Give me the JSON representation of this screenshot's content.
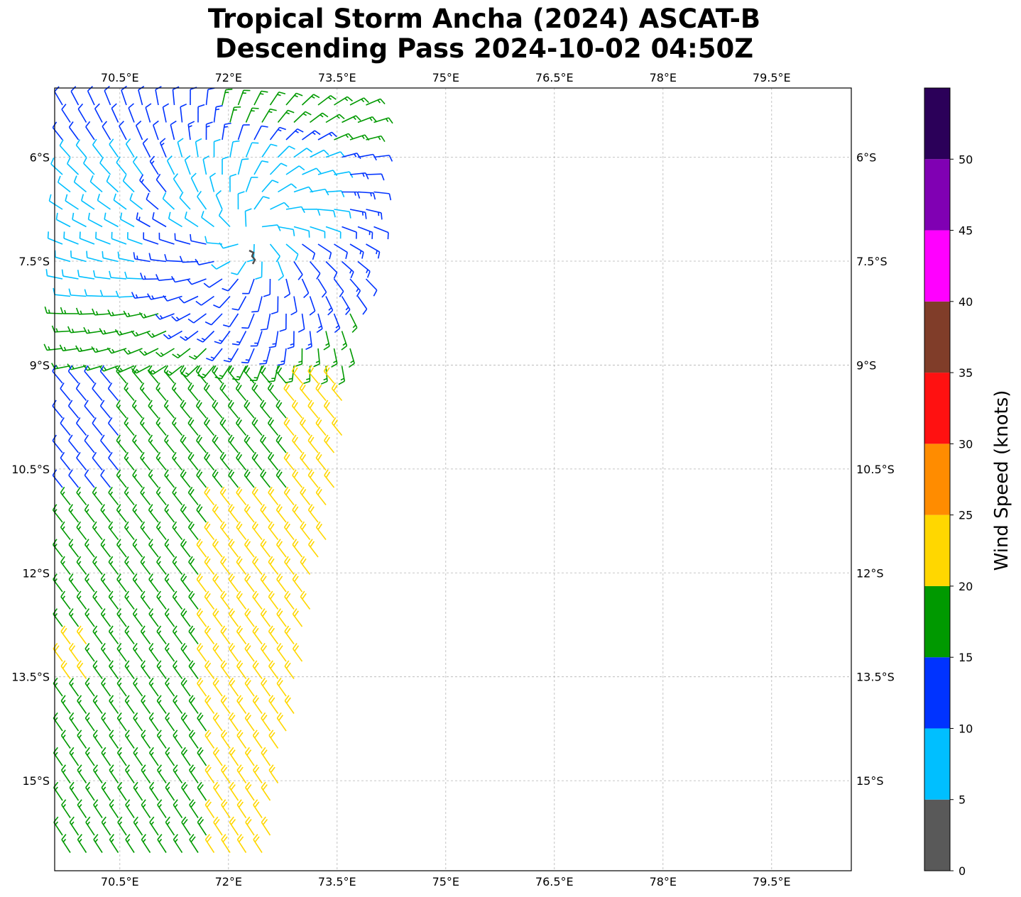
{
  "title": {
    "line1": "Tropical Storm Ancha (2024) ASCAT-B",
    "line2": "Descending Pass 2024-10-02 04:50Z"
  },
  "map": {
    "lon_range": [
      69.6,
      80.6
    ],
    "lat_range": [
      -16.3,
      -5.0
    ],
    "lon_ticks": [
      {
        "value": 70.5,
        "label": "70.5°E"
      },
      {
        "value": 72,
        "label": "72°E"
      },
      {
        "value": 73.5,
        "label": "73.5°E"
      },
      {
        "value": 75,
        "label": "75°E"
      },
      {
        "value": 76.5,
        "label": "76.5°E"
      },
      {
        "value": 78,
        "label": "78°E"
      },
      {
        "value": 79.5,
        "label": "79.5°E"
      }
    ],
    "lat_ticks": [
      {
        "value": -6,
        "label": "6°S"
      },
      {
        "value": -7.5,
        "label": "7.5°S"
      },
      {
        "value": -9,
        "label": "9°S"
      },
      {
        "value": -10.5,
        "label": "10.5°S"
      },
      {
        "value": -12,
        "label": "12°S"
      },
      {
        "value": -13.5,
        "label": "13.5°S"
      },
      {
        "value": -15,
        "label": "15°S"
      }
    ],
    "grid": true,
    "island_color": "#4d4d4d"
  },
  "colorbar": {
    "label": "Wind Speed (knots)",
    "ticks": [
      "0",
      "5",
      "10",
      "15",
      "20",
      "25",
      "30",
      "35",
      "40",
      "45",
      "50"
    ],
    "bins": [
      {
        "min": 0,
        "max": 5,
        "color": "#595959"
      },
      {
        "min": 5,
        "max": 10,
        "color": "#00bfff"
      },
      {
        "min": 10,
        "max": 15,
        "color": "#0033ff"
      },
      {
        "min": 15,
        "max": 20,
        "color": "#009900"
      },
      {
        "min": 20,
        "max": 25,
        "color": "#ffd700"
      },
      {
        "min": 25,
        "max": 30,
        "color": "#ff8c00"
      },
      {
        "min": 30,
        "max": 35,
        "color": "#ff1111"
      },
      {
        "min": 35,
        "max": 40,
        "color": "#803d29"
      },
      {
        "min": 40,
        "max": 45,
        "color": "#ff00ff"
      },
      {
        "min": 45,
        "max": 50,
        "color": "#8000b3"
      },
      {
        "min": 50,
        "max": 55,
        "color": "#2b0059"
      }
    ]
  }
}
